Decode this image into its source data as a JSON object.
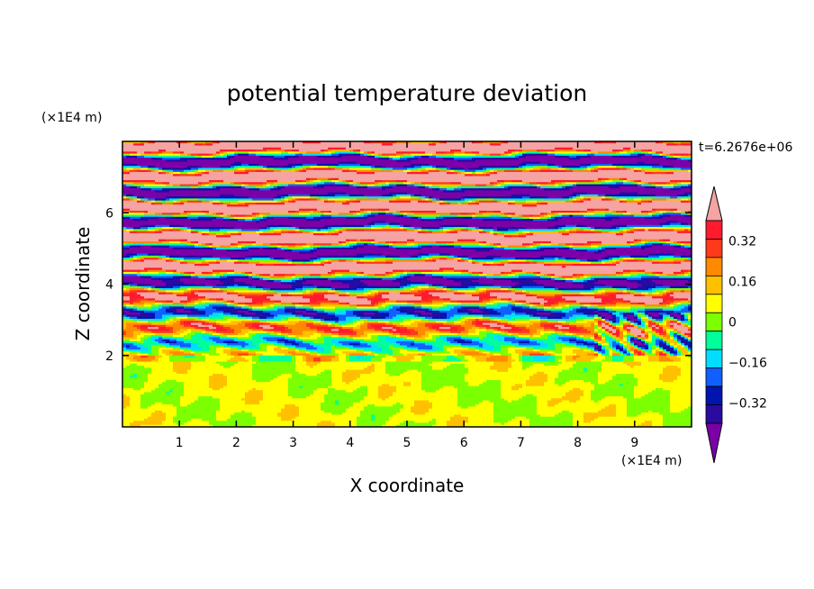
{
  "chart_data": {
    "type": "heatmap",
    "title": "potential temperature deviation",
    "xlabel": "X coordinate",
    "ylabel": "Z coordinate",
    "x_unit": "(×1E4 m)",
    "y_unit": "(×1E4 m)",
    "time_label": "t=6.2676e+06",
    "xlim": [
      0,
      10
    ],
    "ylim": [
      0,
      8
    ],
    "x_ticks": [
      1,
      2,
      3,
      4,
      5,
      6,
      7,
      8,
      9
    ],
    "y_ticks": [
      2,
      4,
      6
    ],
    "x_tick_labels": [
      "1",
      "2",
      "3",
      "4",
      "5",
      "6",
      "7",
      "8",
      "9"
    ],
    "y_tick_labels": [
      "2",
      "4",
      "6"
    ],
    "grid": false,
    "colorbar": {
      "levels": [
        -0.48,
        -0.4,
        -0.32,
        -0.24,
        -0.16,
        -0.08,
        0,
        0.08,
        0.16,
        0.24,
        0.32,
        0.4,
        0.48
      ],
      "colors_low_to_high": [
        "#7b00a8",
        "#2b0aa0",
        "#0015b0",
        "#1060ff",
        "#00ddff",
        "#00ff9c",
        "#7cff00",
        "#ffff00",
        "#ffc000",
        "#ff8a00",
        "#ff3a1a",
        "#ff1a2e",
        "#f5a3a3"
      ],
      "tick_values": [
        0.32,
        0.16,
        0,
        -0.16,
        -0.32
      ],
      "tick_labels": [
        "0.32",
        "0.16",
        "0",
        "−0.16",
        "−0.32"
      ],
      "extend": "both"
    },
    "field_description_bands": [
      {
        "z_range": [
          0,
          2
        ],
        "dominant_levels": [
          0,
          0.08
        ]
      },
      {
        "z_range": [
          2,
          5
        ],
        "dominant_levels": [
          -0.48,
          0.48
        ]
      },
      {
        "z_range": [
          5,
          8
        ],
        "dominant_levels": [
          -0.48,
          0.48
        ]
      }
    ]
  }
}
